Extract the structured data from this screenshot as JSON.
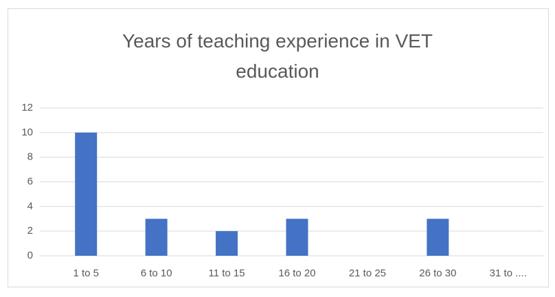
{
  "chart_data": {
    "type": "bar",
    "title": "Years of teaching experience in VET education",
    "categories": [
      "1 to 5",
      "6 to 10",
      "11 to 15",
      "16 to 20",
      "21 to 25",
      "26 to 30",
      "31 to ...."
    ],
    "values": [
      10,
      3,
      2,
      3,
      0,
      3,
      0
    ],
    "color": "#4472c4",
    "ylim": [
      0,
      12
    ],
    "yticks": [
      0,
      2,
      4,
      6,
      8,
      10,
      12
    ],
    "grid": true
  }
}
